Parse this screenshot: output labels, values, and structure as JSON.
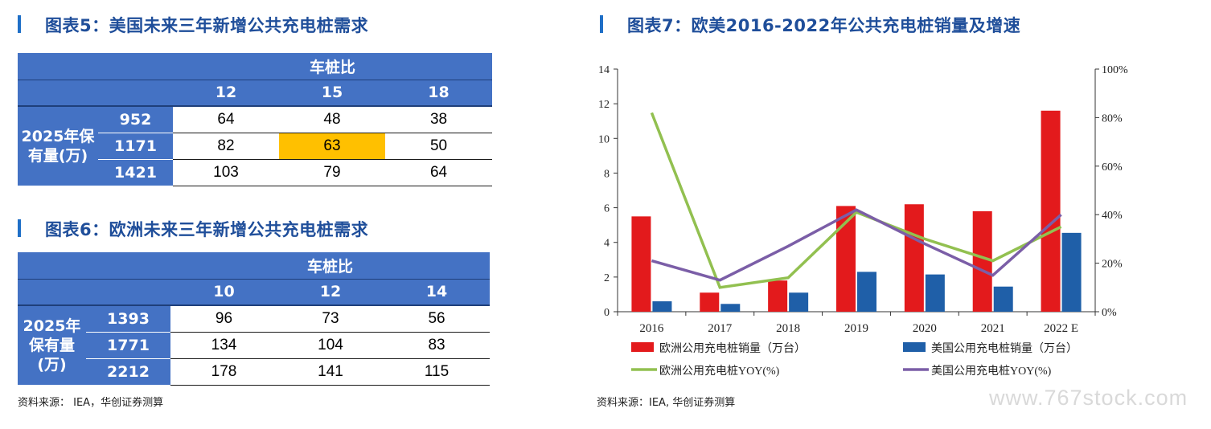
{
  "table5": {
    "title": "图表5：美国未来三年新增公共充电桩需求",
    "header": "车桩比",
    "columns": [
      "12",
      "15",
      "18"
    ],
    "side_label": [
      "2025年保",
      "有量(万)"
    ],
    "rows": [
      {
        "label": "952",
        "values": [
          "64",
          "48",
          "38"
        ]
      },
      {
        "label": "1171",
        "values": [
          "82",
          "63",
          "50"
        ]
      },
      {
        "label": "1421",
        "values": [
          "103",
          "79",
          "64"
        ]
      }
    ],
    "highlight_color": "#ffc000"
  },
  "table6": {
    "title": "图表6：欧洲未来三年新增公共充电桩需求",
    "header": "车桩比",
    "columns": [
      "10",
      "12",
      "14"
    ],
    "side_label": [
      "2025年",
      "保有量",
      "(万)"
    ],
    "rows": [
      {
        "label": "1393",
        "values": [
          "96",
          "73",
          "56"
        ]
      },
      {
        "label": "1771",
        "values": [
          "134",
          "104",
          "83"
        ]
      },
      {
        "label": "2212",
        "values": [
          "178",
          "141",
          "115"
        ]
      }
    ]
  },
  "source_left": "资料来源： IEA，华创证券测算",
  "source_right": "资料来源：IEA, 华创证券测算",
  "watermark": "www.767stock.com",
  "chart_data": {
    "type": "bar",
    "title": "图表7：欧美2016-2022年公共充电桩销量及增速",
    "categories": [
      "2016",
      "2017",
      "2018",
      "2019",
      "2020",
      "2021",
      "2022 E"
    ],
    "series": [
      {
        "name": "欧洲公用充电桩销量（万台）",
        "type": "bar",
        "axis": "left",
        "color": "#e31a1c",
        "values": [
          5.5,
          1.1,
          1.8,
          6.1,
          6.2,
          5.8,
          11.6
        ]
      },
      {
        "name": "美国公用充电桩销量（万台）",
        "type": "bar",
        "axis": "left",
        "color": "#1f5fa8",
        "values": [
          0.6,
          0.45,
          1.1,
          2.3,
          2.15,
          1.45,
          4.55
        ]
      },
      {
        "name": "欧洲公用充电桩YOY(%)",
        "type": "line",
        "axis": "right",
        "color": "#92c050",
        "values": [
          82,
          10,
          14,
          41,
          30,
          21,
          35
        ]
      },
      {
        "name": "美国公用充电桩YOY(%)",
        "type": "line",
        "axis": "right",
        "color": "#7b5ea7",
        "values": [
          21,
          13,
          27,
          42,
          28,
          15,
          40
        ]
      }
    ],
    "y_left": {
      "min": 0,
      "max": 14,
      "ticks": [
        "0",
        "2",
        "4",
        "6",
        "8",
        "10",
        "12",
        "14"
      ]
    },
    "y_right": {
      "min": 0,
      "max": 100,
      "ticks": [
        "0%",
        "20%",
        "40%",
        "60%",
        "80%",
        "100%"
      ]
    },
    "grid": false,
    "legend_position": "bottom"
  }
}
